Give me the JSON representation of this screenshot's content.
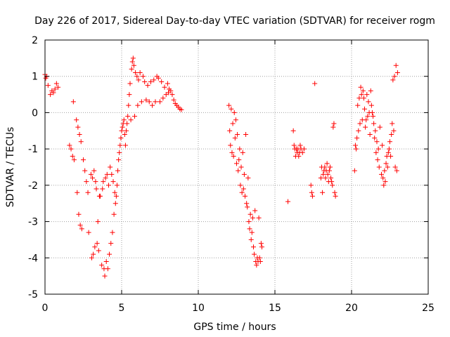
{
  "chart_data": {
    "type": "scatter",
    "title": "Day 226 of 2017, Sidereal Day-to-day VTEC variation (SDTVAR) for receiver rogm",
    "xlabel": "GPS time / hours",
    "ylabel": "SDTVAR / TECUs",
    "xlim": [
      0,
      25
    ],
    "ylim": [
      -5,
      2
    ],
    "xticks": [
      0,
      5,
      10,
      15,
      20,
      25
    ],
    "yticks": [
      -5,
      -4,
      -3,
      -2,
      -1,
      0,
      1,
      2
    ],
    "grid": true,
    "marker": "+",
    "marker_color": "#ff0000",
    "series": [
      {
        "name": "SDTVAR",
        "points": [
          [
            0.0,
            1.05
          ],
          [
            0.05,
            0.95
          ],
          [
            0.1,
            1.0
          ],
          [
            0.2,
            0.75
          ],
          [
            0.35,
            0.5
          ],
          [
            0.45,
            0.6
          ],
          [
            0.55,
            0.55
          ],
          [
            0.65,
            0.65
          ],
          [
            0.75,
            0.8
          ],
          [
            0.85,
            0.7
          ],
          [
            1.6,
            -0.9
          ],
          [
            1.7,
            -1.0
          ],
          [
            1.8,
            -1.2
          ],
          [
            1.85,
            0.3
          ],
          [
            1.9,
            -1.3
          ],
          [
            2.05,
            -0.2
          ],
          [
            2.1,
            -2.2
          ],
          [
            2.15,
            -0.4
          ],
          [
            2.2,
            -2.8
          ],
          [
            2.25,
            -0.6
          ],
          [
            2.3,
            -3.1
          ],
          [
            2.35,
            -0.8
          ],
          [
            2.4,
            -3.2
          ],
          [
            2.5,
            -1.3
          ],
          [
            2.6,
            -1.6
          ],
          [
            2.7,
            -1.9
          ],
          [
            2.8,
            -2.2
          ],
          [
            2.85,
            -3.3
          ],
          [
            3.0,
            -1.7
          ],
          [
            3.05,
            -4.0
          ],
          [
            3.1,
            -1.8
          ],
          [
            3.15,
            -3.9
          ],
          [
            3.2,
            -1.6
          ],
          [
            3.25,
            -3.7
          ],
          [
            3.3,
            -1.9
          ],
          [
            3.35,
            -2.1
          ],
          [
            3.4,
            -3.6
          ],
          [
            3.45,
            -3.0
          ],
          [
            3.5,
            -3.8
          ],
          [
            3.55,
            -2.3
          ],
          [
            3.6,
            -2.3
          ],
          [
            3.7,
            -4.2
          ],
          [
            3.75,
            -2.1
          ],
          [
            3.8,
            -1.9
          ],
          [
            3.85,
            -4.3
          ],
          [
            3.9,
            -4.5
          ],
          [
            3.95,
            -1.8
          ],
          [
            4.0,
            -4.1
          ],
          [
            4.05,
            -1.7
          ],
          [
            4.1,
            -4.3
          ],
          [
            4.15,
            -2.0
          ],
          [
            4.2,
            -3.9
          ],
          [
            4.25,
            -1.5
          ],
          [
            4.3,
            -3.6
          ],
          [
            4.35,
            -1.7
          ],
          [
            4.4,
            -3.3
          ],
          [
            4.45,
            -1.9
          ],
          [
            4.5,
            -2.8
          ],
          [
            4.55,
            -2.2
          ],
          [
            4.6,
            -2.5
          ],
          [
            4.65,
            -2.3
          ],
          [
            4.7,
            -2.0
          ],
          [
            4.75,
            -1.6
          ],
          [
            4.8,
            -1.3
          ],
          [
            4.85,
            -1.1
          ],
          [
            4.9,
            -0.9
          ],
          [
            4.95,
            -0.7
          ],
          [
            5.0,
            -0.5
          ],
          [
            5.05,
            -0.4
          ],
          [
            5.1,
            -0.3
          ],
          [
            5.15,
            -0.2
          ],
          [
            5.2,
            -0.6
          ],
          [
            5.25,
            -0.9
          ],
          [
            5.3,
            -0.5
          ],
          [
            5.35,
            -0.3
          ],
          [
            5.4,
            -0.1
          ],
          [
            5.45,
            0.2
          ],
          [
            5.5,
            0.5
          ],
          [
            5.55,
            0.8
          ],
          [
            5.6,
            -0.2
          ],
          [
            5.65,
            1.2
          ],
          [
            5.7,
            1.4
          ],
          [
            5.75,
            1.5
          ],
          [
            5.8,
            1.3
          ],
          [
            5.85,
            -0.1
          ],
          [
            5.9,
            1.1
          ],
          [
            6.0,
            1.0
          ],
          [
            6.05,
            0.2
          ],
          [
            6.1,
            0.9
          ],
          [
            6.2,
            1.1
          ],
          [
            6.3,
            0.3
          ],
          [
            6.4,
            1.0
          ],
          [
            6.5,
            0.85
          ],
          [
            6.6,
            0.35
          ],
          [
            6.7,
            0.75
          ],
          [
            6.8,
            0.3
          ],
          [
            6.9,
            0.85
          ],
          [
            7.0,
            0.2
          ],
          [
            7.1,
            0.9
          ],
          [
            7.2,
            0.3
          ],
          [
            7.3,
            1.0
          ],
          [
            7.4,
            0.95
          ],
          [
            7.5,
            0.3
          ],
          [
            7.6,
            0.85
          ],
          [
            7.7,
            0.4
          ],
          [
            7.8,
            0.7
          ],
          [
            7.9,
            0.5
          ],
          [
            8.0,
            0.8
          ],
          [
            8.05,
            0.55
          ],
          [
            8.1,
            0.65
          ],
          [
            8.2,
            0.6
          ],
          [
            8.3,
            0.5
          ],
          [
            8.4,
            0.35
          ],
          [
            8.5,
            0.25
          ],
          [
            8.6,
            0.2
          ],
          [
            8.7,
            0.15
          ],
          [
            8.8,
            0.1
          ],
          [
            8.9,
            0.08
          ],
          [
            12.0,
            0.2
          ],
          [
            12.05,
            -0.5
          ],
          [
            12.1,
            -0.9
          ],
          [
            12.15,
            0.1
          ],
          [
            12.2,
            -1.1
          ],
          [
            12.25,
            -0.3
          ],
          [
            12.3,
            -1.2
          ],
          [
            12.35,
            0.0
          ],
          [
            12.4,
            -0.7
          ],
          [
            12.45,
            -0.2
          ],
          [
            12.5,
            -1.4
          ],
          [
            12.55,
            -0.6
          ],
          [
            12.6,
            -1.6
          ],
          [
            12.65,
            -1.3
          ],
          [
            12.7,
            -1.0
          ],
          [
            12.75,
            -2.0
          ],
          [
            12.8,
            -1.5
          ],
          [
            12.85,
            -2.2
          ],
          [
            12.9,
            -1.1
          ],
          [
            12.95,
            -2.1
          ],
          [
            13.0,
            -1.7
          ],
          [
            13.05,
            -2.3
          ],
          [
            13.1,
            -0.6
          ],
          [
            13.15,
            -2.5
          ],
          [
            13.2,
            -2.6
          ],
          [
            13.25,
            -1.8
          ],
          [
            13.3,
            -3.0
          ],
          [
            13.35,
            -3.2
          ],
          [
            13.4,
            -2.8
          ],
          [
            13.45,
            -3.5
          ],
          [
            13.5,
            -3.3
          ],
          [
            13.55,
            -2.9
          ],
          [
            13.6,
            -3.7
          ],
          [
            13.65,
            -3.9
          ],
          [
            13.7,
            -2.7
          ],
          [
            13.75,
            -4.1
          ],
          [
            13.8,
            -4.2
          ],
          [
            13.85,
            -4.0
          ],
          [
            13.9,
            -4.1
          ],
          [
            13.95,
            -2.9
          ],
          [
            14.0,
            -4.0
          ],
          [
            14.05,
            -4.1
          ],
          [
            14.1,
            -3.6
          ],
          [
            14.15,
            -3.7
          ],
          [
            15.85,
            -2.45
          ],
          [
            16.2,
            -0.5
          ],
          [
            16.25,
            -0.9
          ],
          [
            16.3,
            -1.0
          ],
          [
            16.35,
            -1.2
          ],
          [
            16.4,
            -1.0
          ],
          [
            16.45,
            -1.1
          ],
          [
            16.5,
            -1.0
          ],
          [
            16.55,
            -1.2
          ],
          [
            16.6,
            -1.1
          ],
          [
            16.65,
            -0.9
          ],
          [
            16.7,
            -1.0
          ],
          [
            16.8,
            -1.1
          ],
          [
            16.9,
            -1.0
          ],
          [
            17.35,
            -2.0
          ],
          [
            17.4,
            -2.2
          ],
          [
            17.45,
            -2.3
          ],
          [
            17.6,
            0.8
          ],
          [
            18.0,
            -1.8
          ],
          [
            18.05,
            -1.5
          ],
          [
            18.1,
            -2.2
          ],
          [
            18.15,
            -1.7
          ],
          [
            18.2,
            -1.6
          ],
          [
            18.25,
            -1.5
          ],
          [
            18.3,
            -1.8
          ],
          [
            18.35,
            -1.6
          ],
          [
            18.4,
            -1.4
          ],
          [
            18.45,
            -1.7
          ],
          [
            18.5,
            -1.9
          ],
          [
            18.55,
            -1.6
          ],
          [
            18.6,
            -1.5
          ],
          [
            18.65,
            -1.8
          ],
          [
            18.7,
            -1.9
          ],
          [
            18.75,
            -2.0
          ],
          [
            18.8,
            -0.4
          ],
          [
            18.85,
            -0.3
          ],
          [
            18.9,
            -2.2
          ],
          [
            18.95,
            -2.3
          ],
          [
            20.2,
            -1.6
          ],
          [
            20.25,
            -0.9
          ],
          [
            20.3,
            -1.0
          ],
          [
            20.35,
            -0.7
          ],
          [
            20.4,
            0.2
          ],
          [
            20.45,
            -0.5
          ],
          [
            20.5,
            0.4
          ],
          [
            20.55,
            -0.3
          ],
          [
            20.6,
            0.7
          ],
          [
            20.65,
            0.5
          ],
          [
            20.7,
            -0.2
          ],
          [
            20.75,
            0.6
          ],
          [
            20.8,
            0.4
          ],
          [
            20.85,
            0.1
          ],
          [
            20.9,
            -0.4
          ],
          [
            20.95,
            -0.2
          ],
          [
            21.0,
            0.5
          ],
          [
            21.05,
            -0.1
          ],
          [
            21.1,
            0.3
          ],
          [
            21.15,
            0.0
          ],
          [
            21.2,
            -0.6
          ],
          [
            21.25,
            0.6
          ],
          [
            21.3,
            0.2
          ],
          [
            21.35,
            0.0
          ],
          [
            21.4,
            -0.1
          ],
          [
            21.45,
            -0.3
          ],
          [
            21.5,
            -0.7
          ],
          [
            21.55,
            -0.5
          ],
          [
            21.6,
            -1.1
          ],
          [
            21.65,
            -0.8
          ],
          [
            21.7,
            -1.3
          ],
          [
            21.75,
            -1.0
          ],
          [
            21.8,
            -1.5
          ],
          [
            21.85,
            -0.4
          ],
          [
            21.95,
            -1.7
          ],
          [
            22.0,
            -0.9
          ],
          [
            22.05,
            -1.8
          ],
          [
            22.1,
            -2.0
          ],
          [
            22.15,
            -1.6
          ],
          [
            22.2,
            -1.9
          ],
          [
            22.25,
            -1.4
          ],
          [
            22.3,
            -1.2
          ],
          [
            22.35,
            -1.5
          ],
          [
            22.4,
            -1.1
          ],
          [
            22.45,
            -1.0
          ],
          [
            22.5,
            -0.8
          ],
          [
            22.55,
            -1.2
          ],
          [
            22.6,
            -0.6
          ],
          [
            22.65,
            -0.3
          ],
          [
            22.7,
            0.9
          ],
          [
            22.75,
            -0.5
          ],
          [
            22.8,
            1.0
          ],
          [
            22.85,
            -1.5
          ],
          [
            22.9,
            1.3
          ],
          [
            22.95,
            -1.6
          ],
          [
            23.0,
            1.1
          ]
        ]
      }
    ]
  }
}
